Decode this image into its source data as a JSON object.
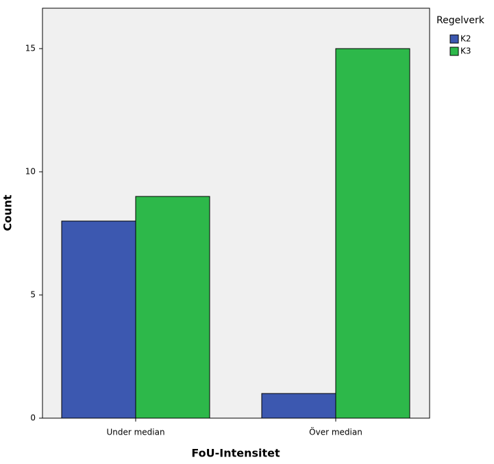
{
  "chart_data": {
    "type": "bar",
    "x_label": "FoU-Intensitet",
    "y_label": "Count",
    "legend_title": "Regelverk",
    "legend_position": "right",
    "categories": [
      "Under median",
      "Över median"
    ],
    "series": [
      {
        "name": "K2",
        "color": "#3c58b0",
        "values": [
          8,
          1
        ]
      },
      {
        "name": "K3",
        "color": "#2db84a",
        "values": [
          9,
          15
        ]
      }
    ],
    "ylim": [
      0,
      16.64
    ],
    "yticks": [
      0,
      5,
      10,
      15
    ]
  }
}
